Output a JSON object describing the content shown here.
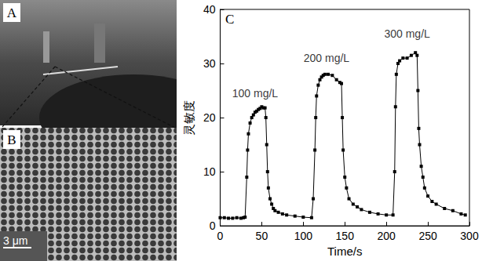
{
  "panels": [
    {
      "label": "A"
    },
    {
      "label": "B",
      "scale_bar": "3 μm"
    }
  ],
  "chart_data": {
    "type": "line",
    "panel_label": "C",
    "x_label": "Time/s",
    "y_label": "灵敏度",
    "x": [
      0,
      5,
      10,
      15,
      20,
      25,
      28,
      30,
      32,
      33,
      34,
      36,
      38,
      40,
      42,
      44,
      46,
      48,
      50,
      52,
      54,
      55,
      56,
      57,
      58,
      60,
      62,
      64,
      66,
      70,
      75,
      80,
      90,
      100,
      110,
      112,
      114,
      115,
      116,
      118,
      120,
      122,
      124,
      126,
      130,
      135,
      140,
      144,
      146,
      147,
      148,
      150,
      152,
      155,
      160,
      165,
      170,
      180,
      190,
      200,
      208,
      210,
      211,
      212,
      214,
      216,
      220,
      225,
      230,
      235,
      237,
      238,
      239,
      240,
      242,
      244,
      246,
      250,
      255,
      260,
      270,
      280,
      290,
      295
    ],
    "values": [
      1.5,
      1.5,
      1.4,
      1.4,
      1.5,
      1.4,
      1.5,
      1.6,
      9,
      14,
      17,
      19,
      20,
      20.5,
      21,
      21.2,
      21.5,
      21.7,
      22,
      21.8,
      21.8,
      20,
      15,
      10,
      7,
      5,
      4,
      3.2,
      2.8,
      2.5,
      2.2,
      2,
      1.8,
      1.6,
      1.5,
      5,
      14,
      20,
      24,
      26,
      27,
      27.5,
      27.8,
      28,
      28,
      27.8,
      27,
      26.5,
      26.3,
      20,
      14,
      9,
      7,
      5,
      4,
      3.5,
      3,
      2.5,
      2.2,
      2,
      2,
      10,
      22,
      28,
      30,
      30.5,
      31,
      31,
      31.5,
      32,
      31.5,
      25,
      18,
      15,
      11,
      9,
      7,
      5.5,
      4.5,
      4,
      3.2,
      2.8,
      2.2,
      2
    ],
    "color": "#000000",
    "marker": "square",
    "annotations": [
      {
        "text": "100 mg/L",
        "x": 42,
        "y": 24.5
      },
      {
        "text": "200 mg/L",
        "x": 128,
        "y": 31
      },
      {
        "text": "300 mg/L",
        "x": 225,
        "y": 35.5
      }
    ],
    "xlim": [
      0,
      300
    ],
    "xticks": [
      0,
      50,
      100,
      150,
      200,
      250,
      300
    ],
    "ylim": [
      0,
      40
    ],
    "yticks": [
      0,
      10,
      20,
      30,
      40
    ],
    "grid": false
  }
}
